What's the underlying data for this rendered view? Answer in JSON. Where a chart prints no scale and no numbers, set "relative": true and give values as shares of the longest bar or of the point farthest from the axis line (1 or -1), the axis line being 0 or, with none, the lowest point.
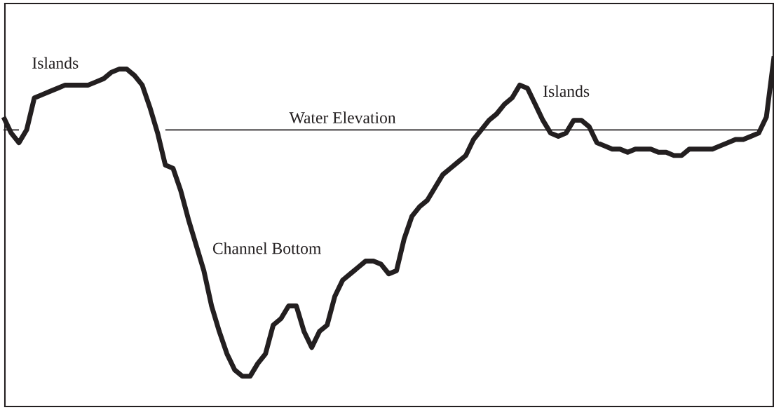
{
  "chart_data": {
    "type": "line",
    "relative": true,
    "tick_labels": false,
    "legend": false,
    "marker": "none",
    "line_style": "solid",
    "categories": [
      null,
      null,
      null,
      null,
      null,
      null,
      null,
      null,
      null,
      null,
      null,
      null,
      null,
      null,
      null,
      null,
      null,
      null,
      null,
      null,
      null,
      null,
      null,
      null,
      null,
      null,
      null,
      null,
      null,
      null,
      null,
      null,
      null,
      null,
      null,
      null,
      null,
      null,
      null,
      null,
      null,
      null,
      null,
      null,
      null,
      null,
      null,
      null,
      null,
      null,
      null,
      null,
      null,
      null,
      null,
      null,
      null,
      null,
      null,
      null,
      null,
      null,
      null,
      null,
      null,
      null,
      null,
      null,
      null,
      null,
      null,
      null,
      null,
      null,
      null,
      null,
      null,
      null,
      null,
      null,
      null,
      null,
      null,
      null,
      null,
      null,
      null,
      null,
      null,
      null,
      null,
      null,
      null,
      null,
      null,
      null,
      null,
      null,
      null,
      null,
      null
    ],
    "series": [
      {
        "color": "#231f20",
        "values": [
          0.81,
          0.76,
          0.73,
          0.77,
          0.87,
          0.88,
          0.89,
          0.9,
          0.91,
          0.91,
          0.91,
          0.91,
          0.92,
          0.93,
          0.95,
          0.96,
          0.96,
          0.94,
          0.91,
          0.84,
          0.76,
          0.66,
          0.65,
          0.58,
          0.49,
          0.41,
          0.33,
          0.22,
          0.14,
          0.07,
          0.02,
          0,
          0.0,
          0.04,
          0.07,
          0.16,
          0.18,
          0.22,
          0.22,
          0.14,
          0.09,
          0.14,
          0.16,
          0.25,
          0.3,
          0.32,
          0.34,
          0.36,
          0.36,
          0.35,
          0.32,
          0.33,
          0.43,
          0.5,
          0.53,
          0.55,
          0.59,
          0.63,
          0.65,
          0.67,
          0.69,
          0.74,
          0.77,
          0.8,
          0.82,
          0.85,
          0.87,
          0.91,
          0.9,
          0.85,
          0.8,
          0.76,
          0.75,
          0.76,
          0.8,
          0.8,
          0.78,
          0.73,
          0.72,
          0.71,
          0.71,
          0.7,
          0.71,
          0.71,
          0.71,
          0.7,
          0.7,
          0.69,
          0.69,
          0.71,
          0.71,
          0.71,
          0.71,
          0.72,
          0.73,
          0.74,
          0.74,
          0.75,
          0.76,
          0.81,
          1.0
        ]
      },
      {
        "name": "Water Elevation",
        "color": "#231f20",
        "values": [
          0.77,
          0.77,
          0.77,
          null,
          null,
          null,
          null,
          null,
          null,
          null,
          null,
          null,
          null,
          null,
          null,
          null,
          null,
          null,
          null,
          null,
          null,
          0.77,
          0.77,
          0.77,
          0.77,
          0.77,
          0.77,
          0.77,
          0.77,
          0.77,
          0.77,
          0.77,
          0.77,
          0.77,
          0.77,
          0.77,
          0.77,
          0.77,
          0.77,
          0.77,
          0.77,
          0.77,
          0.77,
          0.77,
          0.77,
          0.77,
          0.77,
          0.77,
          0.77,
          0.77,
          0.77,
          0.77,
          0.77,
          0.77,
          0.77,
          0.77,
          0.77,
          0.77,
          0.77,
          0.77,
          0.77,
          0.77,
          0.77,
          0.77,
          0.77,
          0.77,
          0.77,
          0.77,
          0.77,
          0.77,
          0.77,
          0.77,
          0.77,
          0.77,
          0.77,
          0.77,
          0.77,
          0.77,
          0.77,
          0.77,
          0.77,
          0.77,
          0.77,
          0.77,
          0.77,
          0.77,
          0.77,
          0.77,
          0.77,
          0.77,
          0.77,
          0.77,
          0.77,
          0.77,
          0.77,
          0.77,
          0.77,
          0.77,
          0.77,
          null,
          null
        ]
      }
    ],
    "annotations": [
      "Islands",
      "Islands",
      "Channel Bottom"
    ]
  }
}
